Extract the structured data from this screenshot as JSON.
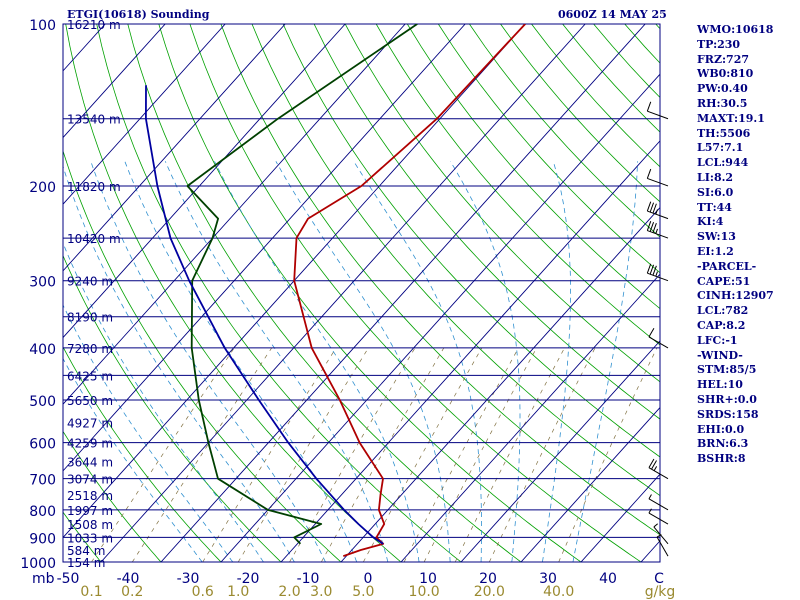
{
  "header": {
    "title": "ETGI(10618) Sounding",
    "datetime": "0600Z 14 MAY 25"
  },
  "indices": [
    "WMO:10618",
    "TP:230",
    "FRZ:727",
    "WB0:810",
    "PW:0.40",
    "RH:30.5",
    "MAXT:19.1",
    "TH:5506",
    "L57:7.1",
    "LCL:944",
    "LI:8.2",
    "SI:6.0",
    "TT:44",
    "KI:4",
    "SW:13",
    "EI:1.2",
    "-PARCEL-",
    "CAPE:51",
    "CINH:12907",
    "LCL:782",
    "CAP:8.2",
    "LFC:-1",
    "-WIND-",
    "STM:85/5",
    "HEL:10",
    "SHR+:0.0",
    "SRDS:158",
    "EHI:0.0",
    "BRN:6.3",
    "BSHR:8"
  ],
  "colors": {
    "temperature": "#b00000",
    "dewpoint": "#004000",
    "parcel": "#0000a0",
    "isotherm": "#000080",
    "isobar": "#000080",
    "dry_adiabat": "#00a000",
    "moist_adiabat": "#3090d0",
    "mixing_ratio": "#807040",
    "text": "#000080",
    "mixing_label": "#9a8a30"
  },
  "chart_data": {
    "type": "line",
    "diagram": "skew-T log-P",
    "xlabel": "C",
    "pressure_unit": "mb",
    "temperature_ticks": [
      -50,
      -40,
      -30,
      -20,
      -10,
      0,
      10,
      20,
      30,
      40
    ],
    "temperature_tick_labels": [
      "-50",
      "-40",
      "-30",
      "-20",
      "-10",
      "0",
      "10",
      "20",
      "30",
      "40"
    ],
    "pressure_levels": [
      100,
      150,
      200,
      250,
      300,
      350,
      400,
      450,
      500,
      600,
      700,
      800,
      900,
      1000
    ],
    "pressure_labels": [
      {
        "p": 100,
        "label": "100"
      },
      {
        "p": 200,
        "label": "200"
      },
      {
        "p": 300,
        "label": "300"
      },
      {
        "p": 400,
        "label": "400"
      },
      {
        "p": 500,
        "label": "500"
      },
      {
        "p": 600,
        "label": "600"
      },
      {
        "p": 700,
        "label": "700"
      },
      {
        "p": 800,
        "label": "800"
      },
      {
        "p": 900,
        "label": "900"
      },
      {
        "p": 1000,
        "label": "1000"
      }
    ],
    "height_labels": [
      {
        "p": 100,
        "label": "16210 m"
      },
      {
        "p": 150,
        "label": "13540 m"
      },
      {
        "p": 200,
        "label": "11820 m"
      },
      {
        "p": 250,
        "label": "10420 m"
      },
      {
        "p": 300,
        "label": "9240 m"
      },
      {
        "p": 350,
        "label": "8190 m"
      },
      {
        "p": 400,
        "label": "7280 m"
      },
      {
        "p": 450,
        "label": "6425 m"
      },
      {
        "p": 500,
        "label": "5650 m"
      },
      {
        "p": 550,
        "label": "4927 m"
      },
      {
        "p": 600,
        "label": "4259 m"
      },
      {
        "p": 650,
        "label": "3644 m"
      },
      {
        "p": 700,
        "label": "3074 m"
      },
      {
        "p": 750,
        "label": "2518 m"
      },
      {
        "p": 800,
        "label": "1997 m"
      },
      {
        "p": 850,
        "label": "1508 m"
      },
      {
        "p": 900,
        "label": "1033 m"
      },
      {
        "p": 950,
        "label": "584 m"
      },
      {
        "p": 1000,
        "label": "154 m"
      }
    ],
    "mixing_ratio_unit": "g/kg",
    "mixing_ratio_labels": [
      {
        "w": 0.1,
        "label": "0.1"
      },
      {
        "w": 0.2,
        "label": "0.2"
      },
      {
        "w": 0.6,
        "label": "0.6"
      },
      {
        "w": 1.0,
        "label": "1.0"
      },
      {
        "w": 2.0,
        "label": "2.0"
      },
      {
        "w": 3.0,
        "label": "3.0"
      },
      {
        "w": 5.0,
        "label": "5.0"
      },
      {
        "w": 10.0,
        "label": "10.0"
      },
      {
        "w": 20.0,
        "label": "20.0"
      },
      {
        "w": 40.0,
        "label": "40.0"
      }
    ],
    "series": [
      {
        "name": "temperature",
        "points": [
          [
            975,
            -0.5
          ],
          [
            950,
            1.5
          ],
          [
            925,
            4.3
          ],
          [
            900,
            2.2
          ],
          [
            850,
            1.5
          ],
          [
            800,
            -1.5
          ],
          [
            750,
            -3.5
          ],
          [
            700,
            -5.5
          ],
          [
            600,
            -14.8
          ],
          [
            500,
            -24.5
          ],
          [
            400,
            -37.0
          ],
          [
            300,
            -50.0
          ],
          [
            250,
            -56.0
          ],
          [
            230,
            -57.0
          ],
          [
            200,
            -53.0
          ],
          [
            150,
            -50.5
          ],
          [
            100,
            -50.0
          ]
        ]
      },
      {
        "name": "dewpoint",
        "points": [
          [
            925,
            -9.5
          ],
          [
            900,
            -11.5
          ],
          [
            850,
            -9.0
          ],
          [
            800,
            -20.0
          ],
          [
            700,
            -33.0
          ],
          [
            600,
            -40.0
          ],
          [
            500,
            -48.0
          ],
          [
            400,
            -57.0
          ],
          [
            300,
            -67.0
          ],
          [
            250,
            -70.0
          ],
          [
            230,
            -72.0
          ],
          [
            200,
            -82.0
          ],
          [
            150,
            -77.0
          ],
          [
            100,
            -68.0
          ]
        ]
      },
      {
        "name": "parcel",
        "points": [
          [
            925,
            4.3
          ],
          [
            900,
            1.7
          ],
          [
            850,
            -2.8
          ],
          [
            800,
            -7.3
          ],
          [
            700,
            -16.6
          ],
          [
            600,
            -26.7
          ],
          [
            500,
            -38.0
          ],
          [
            400,
            -51.5
          ],
          [
            300,
            -67.5
          ],
          [
            250,
            -77.0
          ],
          [
            200,
            -87.0
          ],
          [
            150,
            -99.0
          ],
          [
            130,
            -104.0
          ]
        ]
      }
    ],
    "wind_barbs": [
      {
        "p": 975,
        "dir": 330,
        "spd": 5
      },
      {
        "p": 925,
        "dir": 320,
        "spd": 5
      },
      {
        "p": 850,
        "dir": 300,
        "spd": 5
      },
      {
        "p": 800,
        "dir": 300,
        "spd": 5
      },
      {
        "p": 700,
        "dir": 300,
        "spd": 25
      },
      {
        "p": 400,
        "dir": 300,
        "spd": 10
      },
      {
        "p": 300,
        "dir": 290,
        "spd": 35
      },
      {
        "p": 250,
        "dir": 290,
        "spd": 35
      },
      {
        "p": 230,
        "dir": 290,
        "spd": 35
      },
      {
        "p": 200,
        "dir": 290,
        "spd": 10
      },
      {
        "p": 150,
        "dir": 290,
        "spd": 10
      }
    ]
  }
}
